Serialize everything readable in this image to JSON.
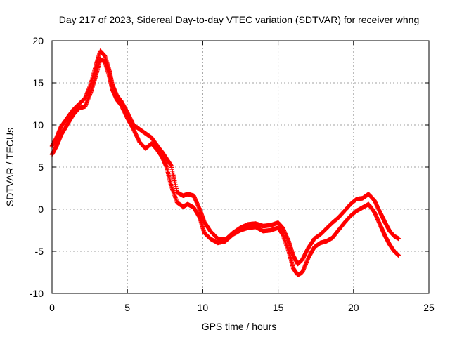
{
  "chart_data": {
    "type": "scatter",
    "title": "Day 217 of 2023, Sidereal Day-to-day VTEC variation (SDTVAR) for receiver whng",
    "xlabel": "GPS time / hours",
    "ylabel": "SDTVAR / TECUs",
    "xlim": [
      0,
      25
    ],
    "ylim": [
      -10,
      20
    ],
    "x_ticks": [
      "0",
      "5",
      "10",
      "15",
      "20",
      "25"
    ],
    "y_ticks": [
      "-10",
      "-5",
      "0",
      "5",
      "10",
      "15",
      "20"
    ],
    "grid": true,
    "legend": "none",
    "marker": "plus",
    "color": "#ff0000",
    "series": [
      {
        "name": "track-1",
        "x": [
          0.0,
          0.3,
          0.6,
          1.0,
          1.4,
          1.8,
          2.2,
          2.6,
          2.9,
          3.2,
          3.5,
          3.8,
          4.0,
          4.3,
          4.6,
          5.0,
          5.4,
          5.8,
          6.2,
          6.6,
          7.0,
          7.3,
          7.6,
          7.9,
          8.3,
          8.7,
          9.0,
          9.4,
          9.8,
          10.1,
          10.5,
          11.0,
          11.5,
          12.0,
          12.5,
          13.0,
          13.5,
          14.0,
          14.5,
          15.0,
          15.3,
          15.7,
          16.0,
          16.3,
          16.6,
          17.0,
          17.4,
          17.8,
          18.2,
          18.6,
          19.0,
          19.4,
          19.8,
          20.2,
          20.6,
          21.0,
          21.4,
          21.8,
          22.1,
          22.4,
          22.7,
          23.0
        ],
        "y": [
          7.5,
          8.5,
          9.8,
          10.8,
          11.8,
          12.5,
          13.2,
          15.0,
          17.0,
          18.8,
          18.2,
          16.5,
          14.8,
          13.5,
          12.8,
          11.5,
          10.0,
          9.5,
          9.0,
          8.5,
          7.5,
          6.8,
          6.0,
          5.2,
          2.0,
          1.6,
          1.8,
          1.6,
          0.0,
          -1.5,
          -2.6,
          -3.5,
          -3.6,
          -2.8,
          -2.2,
          -1.8,
          -1.7,
          -2.0,
          -1.9,
          -1.6,
          -2.2,
          -3.8,
          -5.5,
          -6.5,
          -6.0,
          -4.6,
          -3.5,
          -3.0,
          -2.3,
          -1.6,
          -1.0,
          -0.2,
          0.6,
          1.2,
          1.3,
          1.8,
          1.0,
          -0.5,
          -1.6,
          -2.6,
          -3.2,
          -3.5
        ]
      },
      {
        "name": "track-2",
        "x": [
          0.0,
          0.3,
          0.6,
          1.0,
          1.4,
          1.8,
          2.2,
          2.6,
          2.9,
          3.2,
          3.5,
          3.8,
          4.0,
          4.3,
          4.6,
          5.0,
          5.4,
          5.8,
          6.2,
          6.6,
          7.0,
          7.3,
          7.6,
          7.9,
          8.3,
          8.7,
          9.0,
          9.4,
          9.8,
          10.1,
          10.5,
          11.0,
          11.5,
          12.0,
          12.5,
          13.0,
          13.5,
          14.0,
          14.5,
          15.0,
          15.3,
          15.7,
          16.0,
          16.3,
          16.6,
          17.0,
          17.4,
          17.8,
          18.2,
          18.6,
          19.0,
          19.4,
          19.8,
          20.2,
          20.6,
          21.0,
          21.4,
          21.8,
          22.1,
          22.4,
          22.7,
          23.0
        ],
        "y": [
          6.5,
          7.5,
          8.8,
          10.0,
          11.2,
          12.0,
          12.2,
          14.0,
          15.8,
          17.8,
          17.5,
          15.8,
          14.2,
          13.0,
          12.3,
          10.8,
          9.5,
          8.0,
          7.2,
          7.8,
          7.0,
          6.2,
          5.0,
          2.8,
          0.8,
          0.3,
          0.6,
          0.2,
          -1.0,
          -2.8,
          -3.5,
          -4.0,
          -3.8,
          -3.0,
          -2.5,
          -2.2,
          -2.1,
          -2.6,
          -2.5,
          -2.2,
          -3.0,
          -5.0,
          -7.0,
          -7.8,
          -7.5,
          -5.8,
          -4.5,
          -4.0,
          -3.8,
          -3.4,
          -2.5,
          -1.6,
          -0.8,
          -0.2,
          0.2,
          0.6,
          -0.4,
          -2.0,
          -3.2,
          -4.2,
          -5.0,
          -5.5
        ]
      }
    ]
  }
}
